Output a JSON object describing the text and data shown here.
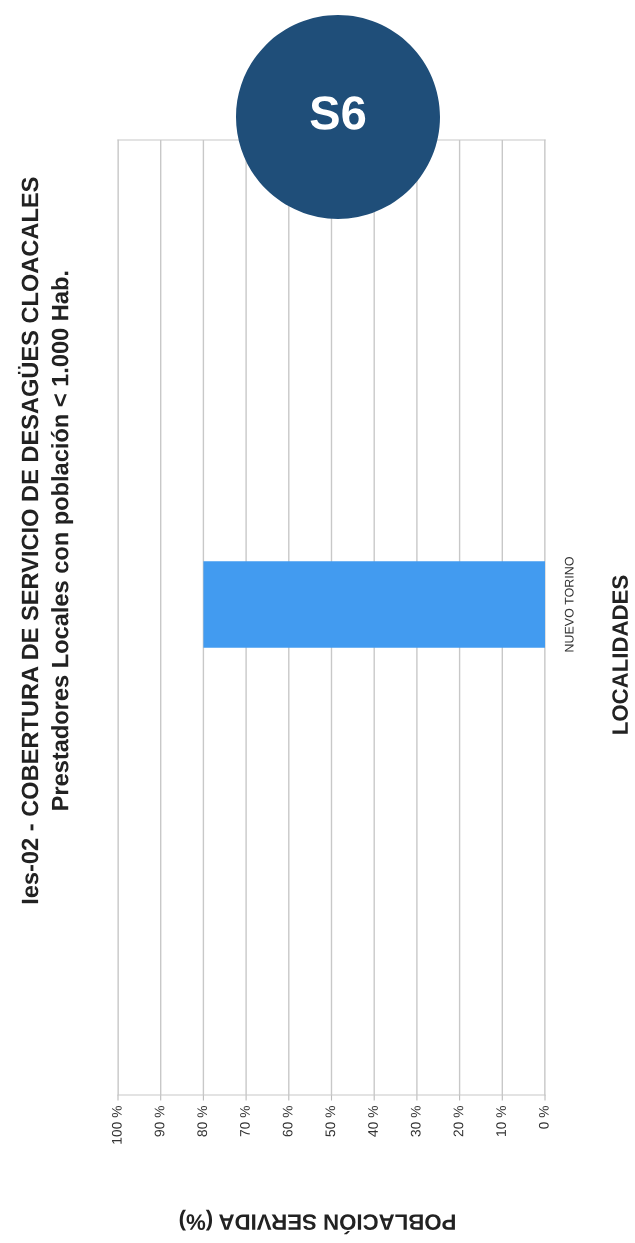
{
  "chart_data": {
    "type": "bar",
    "orientation": "horizontal",
    "title": "Ies-02 - COBERTURA DE SERVICIO DE DESAGÜES CLOACALES",
    "subtitle": "Prestadores Locales con población < 1.000 Hab.",
    "xlabel": "POBLACIÓN SERVIDA (%)",
    "ylabel": "LOCALIDADES",
    "categories": [
      "NUEVO TORINO"
    ],
    "values": [
      80
    ],
    "color": "#429bf0",
    "xlim": [
      100,
      0
    ],
    "xticks": [
      {
        "value": 100,
        "label": "100 %"
      },
      {
        "value": 90,
        "label": "90 %"
      },
      {
        "value": 80,
        "label": "80 %"
      },
      {
        "value": 70,
        "label": "70 %"
      },
      {
        "value": 60,
        "label": "60 %"
      },
      {
        "value": 50,
        "label": "50 %"
      },
      {
        "value": 40,
        "label": "40 %"
      },
      {
        "value": 30,
        "label": "30 %"
      },
      {
        "value": 20,
        "label": "20 %"
      },
      {
        "value": 10,
        "label": "10 %"
      },
      {
        "value": 0,
        "label": "0 %"
      }
    ],
    "grid": "x",
    "annotations": [
      "S6"
    ]
  }
}
